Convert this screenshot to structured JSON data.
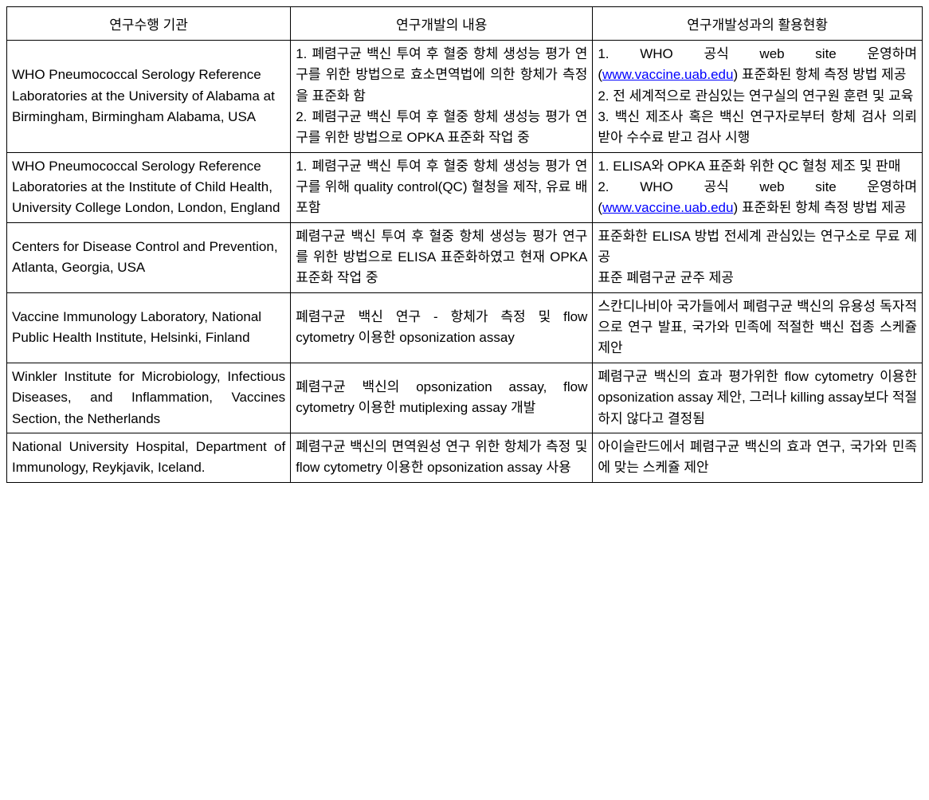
{
  "table": {
    "columns": [
      {
        "label": "연구수행 기관",
        "width_pct": 31
      },
      {
        "label": "연구개발의 내용",
        "width_pct": 33
      },
      {
        "label": "연구개발성과의 활용현황",
        "width_pct": 36
      }
    ],
    "border_color": "#000000",
    "background_color": "#ffffff",
    "font_size_pt": 13,
    "link_color": "#0000ff",
    "rows": [
      {
        "org": "WHO Pneumococcal Serology Reference Laboratories at the University of Alabama at Birmingham, Birmingham Alabama, USA",
        "content": "1. 폐렴구균 백신 투여 후 혈중 항체 생성능 평가 연구를 위한 방법으로 효소면역법에 의한 항체가 측정을 표준화 함\n2. 폐렴구균 백신 투여 후 혈중 항체 생성능 평가 연구를 위한 방법으로 OPKA 표준화 작업 중",
        "results_parts": [
          {
            "text": "1. WHO 공식 web site 운영하며 ("
          },
          {
            "link": "www.vaccine.uab.edu"
          },
          {
            "text": ") 표준화된 항체 측정 방법 제공\n2. 전 세계적으로 관심있는 연구실의 연구원 훈련 및 교육\n3. 백신 제조사 혹은 백신 연구자로부터 항체 검사 의뢰 받아 수수료 받고 검사 시행"
          }
        ],
        "col0_justify": false
      },
      {
        "org": "WHO Pneumococcal Serology Reference Laboratories at the Institute of Child Health, University College London, London, England",
        "content": "1. 폐렴구균 백신 투여 후 혈중 항체 생성능 평가 연구를 위해 quality control(QC) 혈청을 제작, 유료 배포함",
        "results_parts": [
          {
            "text": "1. ELISA와 OPKA 표준화 위한 QC 혈청 제조 및 판매\n2. WHO 공식 web site 운영하며 ("
          },
          {
            "link": "www.vaccine.uab.edu"
          },
          {
            "text": ") 표준화된 항체 측정 방법 제공"
          }
        ],
        "col0_justify": false
      },
      {
        "org": "Centers for Disease Control and Prevention, Atlanta, Georgia, USA",
        "content": "폐렴구균 백신 투여 후 혈중 항체 생성능 평가 연구를 위한 방법으로 ELISA 표준화하였고 현재 OPKA 표준화 작업 중",
        "results_parts": [
          {
            "text": "표준화한 ELISA 방법 전세계 관심있는 연구소로 무료 제공\n표준 폐렴구균 균주 제공"
          }
        ],
        "col0_justify": false
      },
      {
        "org": "Vaccine Immunology Laboratory, National Public Health Institute, Helsinki, Finland",
        "content": "폐렴구균 백신 연구 - 항체가 측정 및 flow cytometry 이용한 opsonization assay",
        "results_parts": [
          {
            "text": "스칸디나비아 국가들에서 폐렴구균 백신의 유용성 독자적으로 연구 발표, 국가와 민족에 적절한 백신 접종 스케쥴 제안"
          }
        ],
        "col0_justify": false
      },
      {
        "org": "Winkler Institute for Microbiology, Infectious Diseases, and Inflammation, Vaccines Section, the Netherlands",
        "content": "폐렴구균 백신의 opsonization assay, flow cytometry 이용한 mutiplexing assay 개발",
        "results_parts": [
          {
            "text": "폐렴구균 백신의 효과 평가위한 flow cytometry 이용한 opsonization assay 제안, 그러나 killing assay보다 적절하지 않다고 결정됨"
          }
        ],
        "col0_justify": true
      },
      {
        "org": "National University Hospital, Department of Immunology, Reykjavik, Iceland.",
        "content": "폐렴구균 백신의 면역원성 연구 위한 항체가 측정 및 flow cytometry 이용한 opsonization assay 사용",
        "results_parts": [
          {
            "text": "아이슬란드에서 폐렴구균 백신의 효과 연구, 국가와 민족에 맞는 스케쥴 제안"
          }
        ],
        "col0_justify": true
      }
    ]
  }
}
